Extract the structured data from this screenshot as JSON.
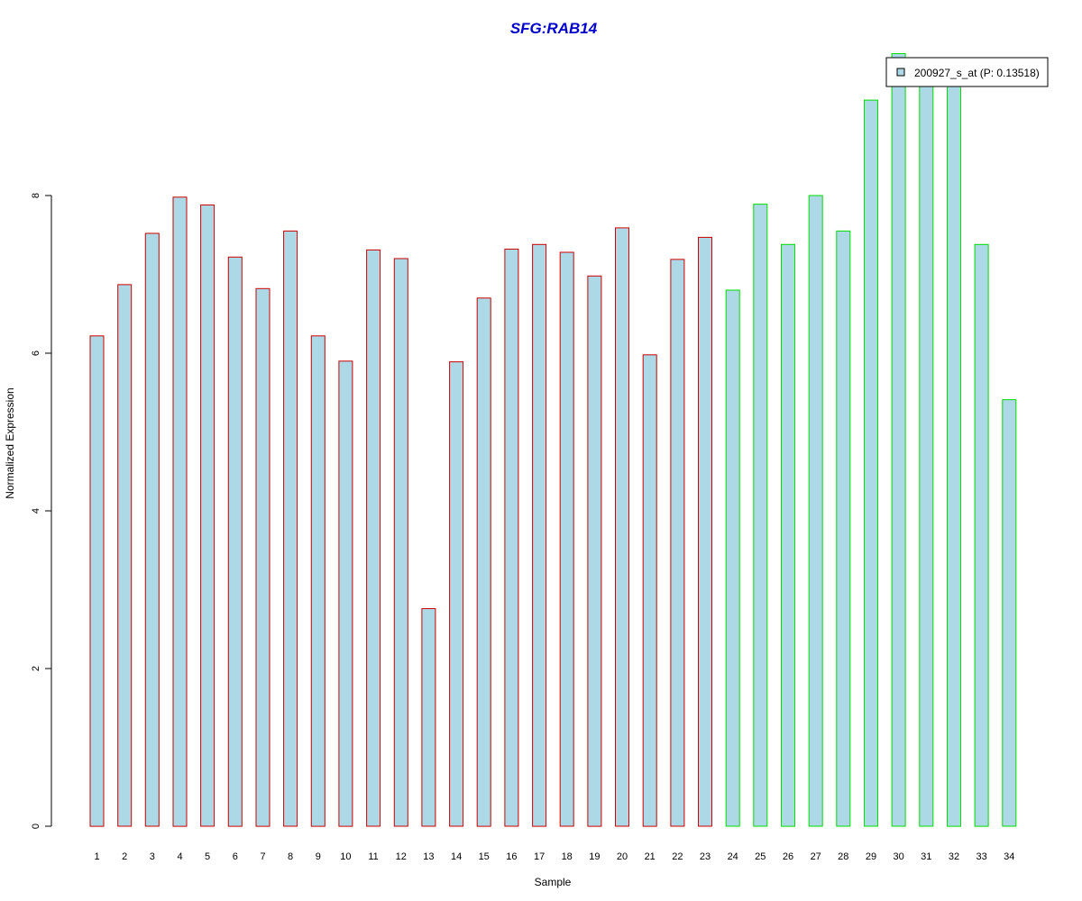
{
  "colors": {
    "bar_fill": "#add8e6",
    "group1_border": "#cc0000",
    "group2_border": "#00dd00",
    "title": "#0000cc",
    "axis": "#000000"
  },
  "chart_data": {
    "type": "bar",
    "title": "SFG:RAB14",
    "xlabel": "Sample",
    "ylabel": "Normalized Expression",
    "ylim": [
      0,
      10
    ],
    "yticks": [
      "0",
      "2",
      "4",
      "6",
      "8"
    ],
    "legend": {
      "label": "200927_s_at (P: 0.13518)",
      "position": "top-right"
    },
    "categories": [
      "1",
      "2",
      "3",
      "4",
      "5",
      "6",
      "7",
      "8",
      "9",
      "10",
      "11",
      "12",
      "13",
      "14",
      "15",
      "16",
      "17",
      "18",
      "19",
      "20",
      "21",
      "22",
      "23",
      "24",
      "25",
      "26",
      "27",
      "28",
      "29",
      "30",
      "31",
      "32",
      "33",
      "34"
    ],
    "values": [
      6.22,
      6.87,
      7.52,
      7.98,
      7.88,
      7.22,
      6.82,
      7.55,
      6.22,
      5.9,
      7.31,
      7.2,
      2.76,
      5.89,
      6.7,
      7.32,
      7.38,
      7.28,
      6.98,
      7.59,
      5.98,
      7.19,
      7.47,
      6.8,
      7.89,
      7.38,
      8.0,
      7.55,
      9.21,
      9.8,
      9.6,
      9.5,
      7.38,
      5.41
    ],
    "groups": [
      1,
      1,
      1,
      1,
      1,
      1,
      1,
      1,
      1,
      1,
      1,
      1,
      1,
      1,
      1,
      1,
      1,
      1,
      1,
      1,
      1,
      1,
      1,
      2,
      2,
      2,
      2,
      2,
      2,
      2,
      2,
      2,
      2,
      2
    ]
  }
}
